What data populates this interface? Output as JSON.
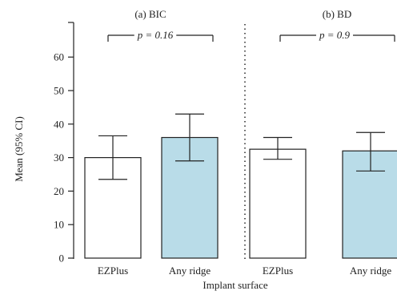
{
  "chart_data": {
    "type": "bar",
    "ylabel": "Mean (95% CI)",
    "xlabel": "Implant surface",
    "ylim": [
      0,
      70
    ],
    "yticks": [
      0,
      10,
      20,
      30,
      40,
      50,
      60
    ],
    "grid": false,
    "panels": [
      {
        "title": "(a) BIC",
        "p_label": "p = 0.16",
        "categories": [
          "EZPlus",
          "Any ridge"
        ],
        "values": [
          30,
          36
        ],
        "ci_low": [
          23.5,
          29
        ],
        "ci_high": [
          36.5,
          43
        ],
        "colors": [
          "#ffffff",
          "#b9dce8"
        ]
      },
      {
        "title": "(b) BD",
        "p_label": "p = 0.9",
        "categories": [
          "EZPlus",
          "Any ridge"
        ],
        "values": [
          32.5,
          32
        ],
        "ci_low": [
          29.5,
          26
        ],
        "ci_high": [
          36,
          37.5
        ],
        "colors": [
          "#ffffff",
          "#b9dce8"
        ]
      }
    ]
  }
}
